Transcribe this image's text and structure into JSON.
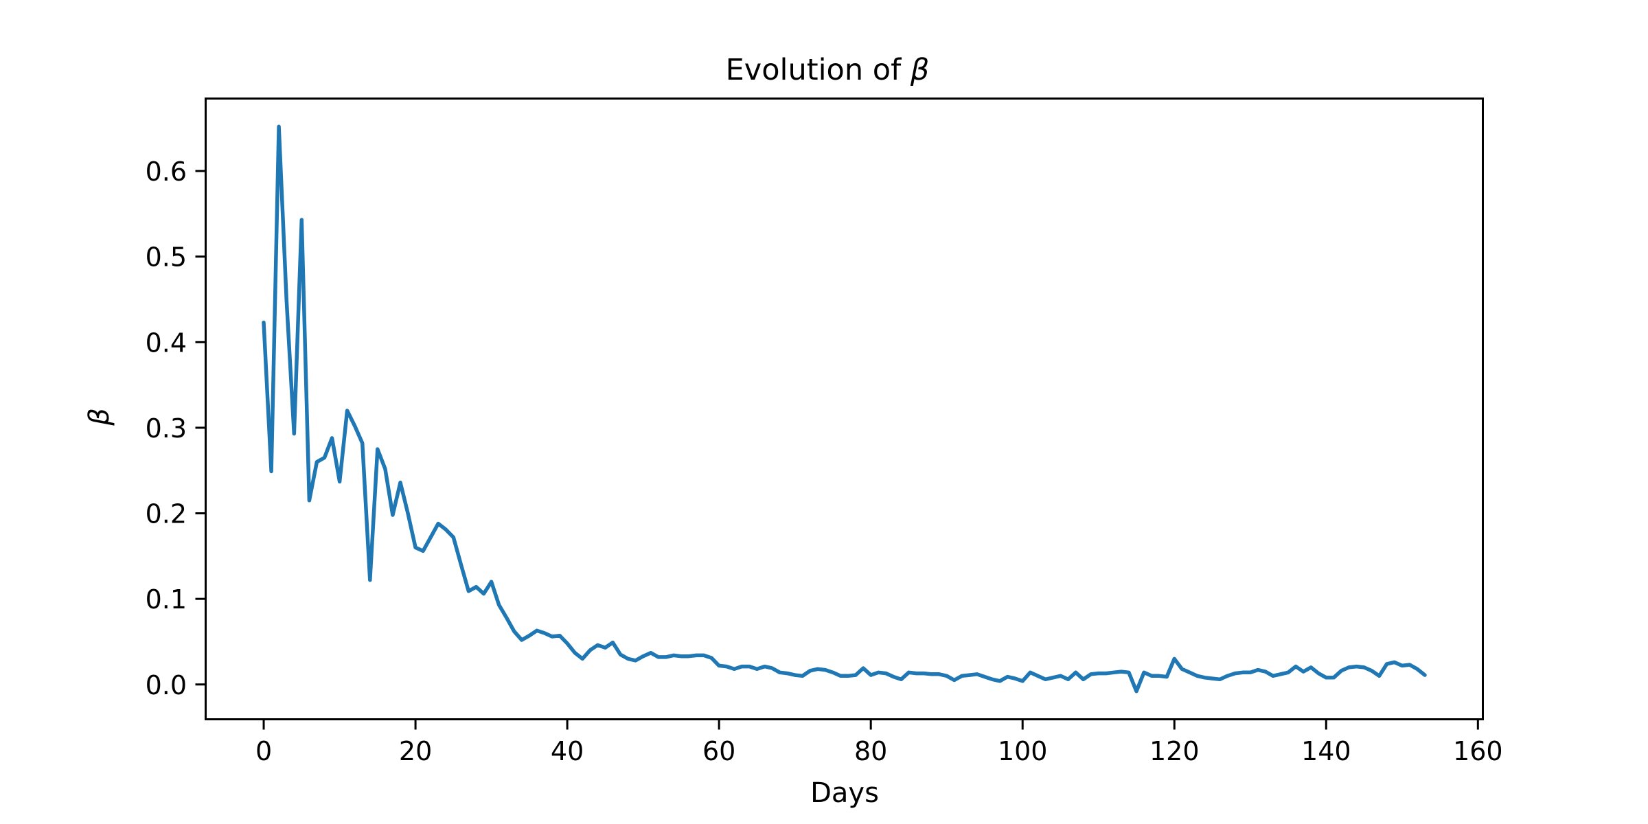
{
  "chart_data": {
    "type": "line",
    "title": "Evolution of β",
    "title_prefix": "Evolution of ",
    "title_symbol": "β",
    "xlabel": "Days",
    "ylabel": "β",
    "legend": "none",
    "grid": false,
    "line_color": "#1f77b4",
    "axis_color": "#000000",
    "background_color": "#ffffff",
    "xlim": [
      -7.65,
      160.65
    ],
    "ylim": [
      -0.0407,
      0.6847
    ],
    "x_tick_values": [
      0,
      20,
      40,
      60,
      80,
      100,
      120,
      140,
      160
    ],
    "x_tick_labels": [
      "0",
      "20",
      "40",
      "60",
      "80",
      "100",
      "120",
      "140",
      "160"
    ],
    "y_tick_values": [
      0.0,
      0.1,
      0.2,
      0.3,
      0.4,
      0.5,
      0.6
    ],
    "y_tick_labels": [
      "0.0",
      "0.1",
      "0.2",
      "0.3",
      "0.4",
      "0.5",
      "0.6"
    ],
    "x_start": 0,
    "x_step": 1,
    "values": [
      0.423,
      0.249,
      0.652,
      0.45,
      0.293,
      0.543,
      0.215,
      0.26,
      0.265,
      0.288,
      0.237,
      0.32,
      0.302,
      0.282,
      0.122,
      0.275,
      0.252,
      0.198,
      0.236,
      0.2,
      0.16,
      0.156,
      0.172,
      0.188,
      0.181,
      0.172,
      0.14,
      0.109,
      0.114,
      0.106,
      0.12,
      0.093,
      0.078,
      0.062,
      0.052,
      0.057,
      0.063,
      0.06,
      0.056,
      0.057,
      0.048,
      0.037,
      0.03,
      0.04,
      0.046,
      0.043,
      0.049,
      0.035,
      0.03,
      0.028,
      0.033,
      0.037,
      0.032,
      0.032,
      0.034,
      0.033,
      0.033,
      0.034,
      0.034,
      0.031,
      0.022,
      0.021,
      0.018,
      0.021,
      0.021,
      0.018,
      0.021,
      0.019,
      0.014,
      0.013,
      0.011,
      0.01,
      0.016,
      0.018,
      0.017,
      0.014,
      0.01,
      0.01,
      0.011,
      0.019,
      0.011,
      0.014,
      0.013,
      0.009,
      0.006,
      0.014,
      0.013,
      0.013,
      0.012,
      0.012,
      0.01,
      0.005,
      0.01,
      0.011,
      0.012,
      0.009,
      0.006,
      0.004,
      0.009,
      0.007,
      0.004,
      0.014,
      0.01,
      0.006,
      0.008,
      0.01,
      0.006,
      0.014,
      0.006,
      0.012,
      0.013,
      0.013,
      0.014,
      0.015,
      0.014,
      -0.008,
      0.014,
      0.01,
      0.01,
      0.009,
      0.03,
      0.018,
      0.014,
      0.01,
      0.008,
      0.007,
      0.006,
      0.01,
      0.013,
      0.014,
      0.014,
      0.017,
      0.015,
      0.01,
      0.012,
      0.014,
      0.021,
      0.015,
      0.02,
      0.013,
      0.008,
      0.008,
      0.016,
      0.02,
      0.021,
      0.02,
      0.016,
      0.01,
      0.024,
      0.026,
      0.022,
      0.023,
      0.018,
      0.011
    ]
  }
}
